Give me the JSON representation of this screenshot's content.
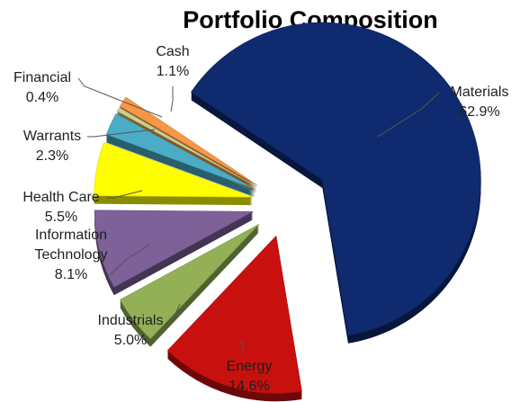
{
  "chart_data": {
    "type": "pie",
    "title": "Portfolio Composition",
    "slices": [
      {
        "label": "Materials",
        "value": 62.9,
        "value_label": "62.9%",
        "color": "#0f2a6e"
      },
      {
        "label": "Energy",
        "value": 14.6,
        "value_label": "14.6%",
        "color": "#c8100f"
      },
      {
        "label": "Industrials",
        "value": 5.0,
        "value_label": "5.0%",
        "color": "#93b057"
      },
      {
        "label": "Information Technology",
        "value": 8.1,
        "value_label": "8.1%",
        "color": "#7e6198"
      },
      {
        "label": "Health Care",
        "value": 5.5,
        "value_label": "5.5%",
        "color": "#ffff00"
      },
      {
        "label": "Warrants",
        "value": 2.3,
        "value_label": "2.3%",
        "color": "#4bacc6"
      },
      {
        "label": "Financial",
        "value": 0.4,
        "value_label": "0.4%",
        "color": "#c7d28c"
      },
      {
        "label": "Cash",
        "value": 1.1,
        "value_label": "1.1%",
        "color": "#f79646"
      }
    ],
    "exploded": true,
    "legend": "none",
    "style": "3d"
  }
}
